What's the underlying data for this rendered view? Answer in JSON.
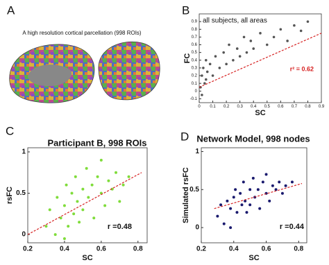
{
  "chart_data": [
    {
      "type": "image",
      "label": "A",
      "title": "A high resolution cortical parcellation (998 ROIs)"
    },
    {
      "type": "scatter",
      "label": "B",
      "xlabel": "SC",
      "ylabel": "FC",
      "annotations": [
        "all subjects, all areas",
        "r² = 0.62"
      ],
      "color": "#555555",
      "fit_color": "#d62020",
      "xlim": [
        0,
        0.9
      ],
      "xticks": [
        0,
        0.1,
        0.2,
        0.3,
        0.4,
        0.5,
        0.6,
        0.7,
        0.8,
        0.9
      ],
      "ylim": [
        -0.15,
        1
      ],
      "yticks": [
        -0.1,
        0,
        0.1,
        0.2,
        0.3,
        0.4,
        0.5,
        0.6,
        0.7,
        0.8,
        0.9
      ],
      "x": [
        0.01,
        0.02,
        0.02,
        0.03,
        0.04,
        0.05,
        0.05,
        0.06,
        0.08,
        0.1,
        0.12,
        0.15,
        0.18,
        0.2,
        0.22,
        0.25,
        0.28,
        0.3,
        0.33,
        0.35,
        0.38,
        0.4,
        0.45,
        0.5,
        0.55,
        0.6,
        0.65,
        0.7,
        0.75,
        0.8
      ],
      "y": [
        0.05,
        0.2,
        -0.05,
        0.3,
        0.1,
        0.4,
        0.15,
        0.25,
        0.35,
        0.2,
        0.45,
        0.3,
        0.5,
        0.35,
        0.6,
        0.4,
        0.55,
        0.45,
        0.7,
        0.5,
        0.65,
        0.55,
        0.75,
        0.6,
        0.7,
        0.8,
        0.65,
        0.85,
        0.78,
        0.9
      ],
      "fit_line": {
        "x": [
          0,
          0.9
        ],
        "y": [
          0.05,
          0.75
        ]
      }
    },
    {
      "type": "scatter",
      "label": "C",
      "title": "Participant B, 998 ROIs",
      "xlabel": "SC",
      "ylabel": "rsFC",
      "annotations": [
        "r =0.48"
      ],
      "color": "#7fdc3a",
      "fit_color": "#d62020",
      "xlim": [
        0.2,
        0.85
      ],
      "xticks": [
        0.2,
        0.4,
        0.6,
        0.8
      ],
      "ylim": [
        -0.1,
        1.05
      ],
      "yticks": [
        0,
        0.5,
        1
      ],
      "x": [
        0.3,
        0.32,
        0.35,
        0.36,
        0.38,
        0.4,
        0.41,
        0.42,
        0.44,
        0.45,
        0.46,
        0.47,
        0.48,
        0.5,
        0.5,
        0.52,
        0.53,
        0.55,
        0.56,
        0.58,
        0.6,
        0.6,
        0.62,
        0.64,
        0.66,
        0.68,
        0.7,
        0.72,
        0.75,
        0.4
      ],
      "y": [
        0.1,
        0.3,
        0.0,
        0.45,
        0.2,
        0.35,
        0.6,
        0.1,
        0.5,
        0.25,
        0.7,
        0.4,
        0.15,
        0.55,
        0.3,
        0.8,
        0.45,
        0.6,
        0.2,
        0.7,
        0.5,
        0.9,
        0.35,
        0.65,
        0.55,
        0.75,
        0.4,
        0.6,
        0.7,
        -0.05
      ],
      "fit_line": {
        "x": [
          0.2,
          0.82
        ],
        "y": [
          0.0,
          0.75
        ]
      }
    },
    {
      "type": "scatter",
      "label": "D",
      "title": "Network Model, 998 nodes",
      "xlabel": "SC",
      "ylabel": "Simulated rsFC",
      "annotations": [
        "r =0.44"
      ],
      "color": "#1a1a6e",
      "fit_color": "#d62020",
      "xlim": [
        0.2,
        0.85
      ],
      "xticks": [
        0.2,
        0.4,
        0.6,
        0.8
      ],
      "ylim": [
        -0.2,
        1.05
      ],
      "yticks": [
        0,
        0.5,
        1
      ],
      "x": [
        0.3,
        0.32,
        0.34,
        0.36,
        0.38,
        0.4,
        0.41,
        0.42,
        0.44,
        0.45,
        0.46,
        0.47,
        0.48,
        0.5,
        0.5,
        0.52,
        0.53,
        0.55,
        0.56,
        0.58,
        0.6,
        0.6,
        0.62,
        0.64,
        0.66,
        0.68,
        0.7,
        0.72,
        0.76,
        0.38
      ],
      "y": [
        0.15,
        0.3,
        0.05,
        0.35,
        0.25,
        0.4,
        0.5,
        0.2,
        0.45,
        0.3,
        0.6,
        0.35,
        0.2,
        0.5,
        0.3,
        0.65,
        0.4,
        0.5,
        0.25,
        0.6,
        0.45,
        0.7,
        0.35,
        0.55,
        0.5,
        0.6,
        0.45,
        0.55,
        0.6,
        0.0
      ],
      "fit_line": {
        "x": [
          0.28,
          0.82
        ],
        "y": [
          0.25,
          0.58
        ]
      }
    }
  ]
}
